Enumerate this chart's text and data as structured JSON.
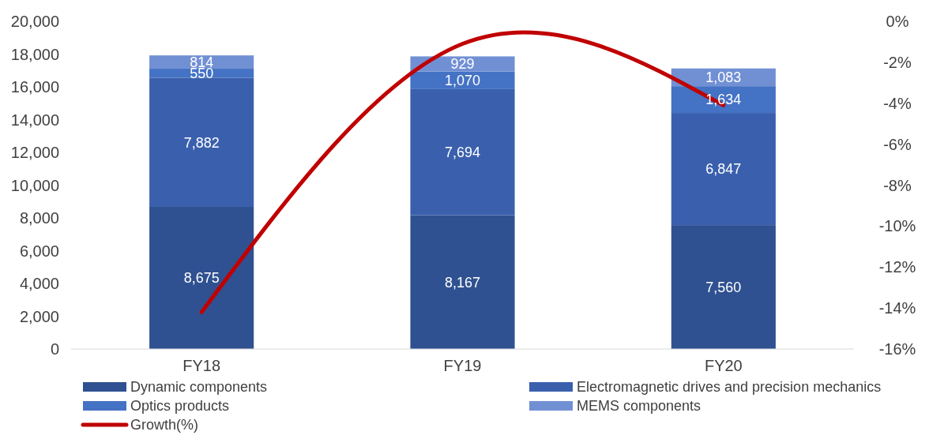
{
  "chart_data": {
    "type": "bar",
    "stacked": true,
    "categories": [
      "FY18",
      "FY19",
      "FY20"
    ],
    "series": [
      {
        "name": "Dynamic components",
        "color": "#2f5191",
        "values": [
          8675,
          8167,
          7560
        ],
        "value_labels": [
          "8,675",
          "8,167",
          "7,560"
        ]
      },
      {
        "name": "Electromagnetic drives and precision mechanics",
        "color": "#3a60ad",
        "values": [
          7882,
          7694,
          6847
        ],
        "value_labels": [
          "7,882",
          "7,694",
          "6,847"
        ]
      },
      {
        "name": "Optics products",
        "color": "#4472c4",
        "values": [
          550,
          1070,
          1634
        ],
        "value_labels": [
          "550",
          "1,070",
          "1,634"
        ]
      },
      {
        "name": "MEMS components",
        "color": "#7190d4",
        "values": [
          814,
          929,
          1083
        ],
        "value_labels": [
          "814",
          "929",
          "1,083"
        ]
      },
      {
        "name": "Growth(%)",
        "type": "line",
        "axis": "y2",
        "color": "#c00000",
        "values": [
          -14.2,
          -1.1,
          -4.1
        ]
      }
    ],
    "ylim": [
      0,
      20000
    ],
    "yticks": [
      {
        "value": 0,
        "label": "0"
      },
      {
        "value": 2000,
        "label": "2,000"
      },
      {
        "value": 4000,
        "label": "4,000"
      },
      {
        "value": 6000,
        "label": "6,000"
      },
      {
        "value": 8000,
        "label": "8,000"
      },
      {
        "value": 10000,
        "label": "10,000"
      },
      {
        "value": 12000,
        "label": "12,000"
      },
      {
        "value": 14000,
        "label": "14,000"
      },
      {
        "value": 16000,
        "label": "16,000"
      },
      {
        "value": 18000,
        "label": "18,000"
      },
      {
        "value": 20000,
        "label": "20,000"
      }
    ],
    "y2lim": [
      -16,
      0
    ],
    "y2ticks": [
      {
        "value": -16,
        "label": "-16%"
      },
      {
        "value": -14,
        "label": "-14%"
      },
      {
        "value": -12,
        "label": "-12%"
      },
      {
        "value": -10,
        "label": "-10%"
      },
      {
        "value": -8,
        "label": "-8%"
      },
      {
        "value": -6,
        "label": "-6%"
      },
      {
        "value": -4,
        "label": "-4%"
      },
      {
        "value": -2,
        "label": "-2%"
      },
      {
        "value": 0,
        "label": "0%"
      }
    ],
    "legend": "bottom",
    "grid": false
  }
}
